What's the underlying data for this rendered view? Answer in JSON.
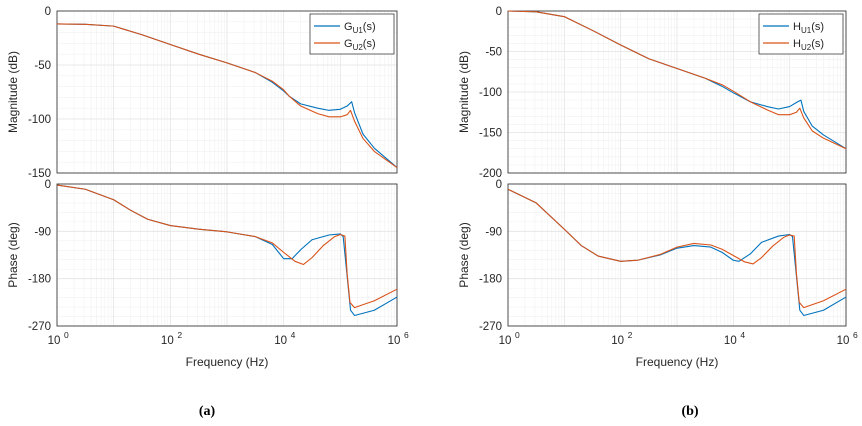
{
  "chart_data": [
    {
      "id": "a",
      "type": "line",
      "caption": "(a)",
      "xlabel": "Frequency (Hz)",
      "xscale": "log",
      "xlim": [
        1,
        1000000
      ],
      "xticks": [
        1,
        100,
        10000,
        1000000
      ],
      "xtick_labels": [
        {
          "base": "10",
          "exp": "0"
        },
        {
          "base": "10",
          "exp": "2"
        },
        {
          "base": "10",
          "exp": "4"
        },
        {
          "base": "10",
          "exp": "6"
        }
      ],
      "legend_location": "top-right",
      "colors": {
        "series1": "#0072BD",
        "series2": "#D95319"
      },
      "legend": [
        {
          "main": "G",
          "sub": "U1",
          "tail": "(s)"
        },
        {
          "main": "G",
          "sub": "U2",
          "tail": "(s)"
        }
      ],
      "magnitude": {
        "ylabel": "Magnitude (dB)",
        "ylim": [
          -150,
          0
        ],
        "yticks": [
          0,
          -50,
          -100,
          -150
        ],
        "ytick_labels": [
          "0",
          "-50",
          "-100",
          "-150"
        ],
        "series": [
          {
            "name": "G_U1(s)",
            "points": [
              [
                0,
                -12
              ],
              [
                0.5,
                -12.3
              ],
              [
                1,
                -14
              ],
              [
                1.5,
                -22
              ],
              [
                2,
                -31
              ],
              [
                2.5,
                -40
              ],
              [
                3,
                -48
              ],
              [
                3.5,
                -57
              ],
              [
                3.8,
                -66
              ],
              [
                4,
                -74
              ],
              [
                4.1,
                -79
              ],
              [
                4.3,
                -86
              ],
              [
                4.6,
                -90
              ],
              [
                4.8,
                -92
              ],
              [
                5,
                -91
              ],
              [
                5.12,
                -88
              ],
              [
                5.2,
                -84
              ],
              [
                5.25,
                -94
              ],
              [
                5.4,
                -114
              ],
              [
                5.6,
                -127
              ],
              [
                6,
                -145
              ]
            ]
          },
          {
            "name": "G_U2(s)",
            "points": [
              [
                0,
                -12
              ],
              [
                0.5,
                -12.3
              ],
              [
                1,
                -14
              ],
              [
                1.5,
                -22
              ],
              [
                2,
                -31
              ],
              [
                2.5,
                -40
              ],
              [
                3,
                -48
              ],
              [
                3.5,
                -57
              ],
              [
                3.8,
                -65
              ],
              [
                4,
                -73
              ],
              [
                4.1,
                -79
              ],
              [
                4.3,
                -88
              ],
              [
                4.6,
                -95
              ],
              [
                4.8,
                -98
              ],
              [
                5,
                -98
              ],
              [
                5.12,
                -96
              ],
              [
                5.18,
                -92
              ],
              [
                5.25,
                -102
              ],
              [
                5.4,
                -118
              ],
              [
                5.6,
                -130
              ],
              [
                6,
                -145
              ]
            ]
          }
        ]
      },
      "phase": {
        "ylabel": "Phase (deg)",
        "ylim": [
          -270,
          0
        ],
        "yticks": [
          0,
          -90,
          -180,
          -270
        ],
        "ytick_labels": [
          "0",
          "-90",
          "-180",
          "-270"
        ],
        "series": [
          {
            "name": "G_U1(s)",
            "points": [
              [
                0,
                -2
              ],
              [
                0.5,
                -10
              ],
              [
                1,
                -30
              ],
              [
                1.3,
                -50
              ],
              [
                1.6,
                -67
              ],
              [
                2,
                -79
              ],
              [
                2.5,
                -86
              ],
              [
                3,
                -91
              ],
              [
                3.5,
                -100
              ],
              [
                3.8,
                -115
              ],
              [
                4,
                -142
              ],
              [
                4.15,
                -142
              ],
              [
                4.3,
                -125
              ],
              [
                4.5,
                -106
              ],
              [
                4.8,
                -97
              ],
              [
                5,
                -95
              ],
              [
                5.05,
                -100
              ],
              [
                5.12,
                -175
              ],
              [
                5.18,
                -240
              ],
              [
                5.25,
                -250
              ],
              [
                5.6,
                -240
              ],
              [
                6,
                -215
              ]
            ]
          },
          {
            "name": "G_U2(s)",
            "points": [
              [
                0,
                -2
              ],
              [
                0.5,
                -10
              ],
              [
                1,
                -30
              ],
              [
                1.3,
                -50
              ],
              [
                1.6,
                -67
              ],
              [
                2,
                -79
              ],
              [
                2.5,
                -86
              ],
              [
                3,
                -91
              ],
              [
                3.5,
                -100
              ],
              [
                3.8,
                -112
              ],
              [
                4,
                -130
              ],
              [
                4.2,
                -147
              ],
              [
                4.35,
                -153
              ],
              [
                4.5,
                -140
              ],
              [
                4.7,
                -117
              ],
              [
                4.9,
                -100
              ],
              [
                5,
                -96
              ],
              [
                5.08,
                -99
              ],
              [
                5.12,
                -170
              ],
              [
                5.17,
                -225
              ],
              [
                5.25,
                -235
              ],
              [
                5.6,
                -222
              ],
              [
                6,
                -200
              ]
            ]
          }
        ]
      }
    },
    {
      "id": "b",
      "type": "line",
      "caption": "(b)",
      "xlabel": "Frequency (Hz)",
      "xscale": "log",
      "xlim": [
        1,
        1000000
      ],
      "xticks": [
        1,
        100,
        10000,
        1000000
      ],
      "xtick_labels": [
        {
          "base": "10",
          "exp": "0"
        },
        {
          "base": "10",
          "exp": "2"
        },
        {
          "base": "10",
          "exp": "4"
        },
        {
          "base": "10",
          "exp": "6"
        }
      ],
      "legend_location": "top-right",
      "colors": {
        "series1": "#0072BD",
        "series2": "#D95319"
      },
      "legend": [
        {
          "main": "H",
          "sub": "U1",
          "tail": "(s)"
        },
        {
          "main": "H",
          "sub": "U2",
          "tail": "(s)"
        }
      ],
      "magnitude": {
        "ylabel": "Magnitude (dB)",
        "ylim": [
          -200,
          0
        ],
        "yticks": [
          0,
          -50,
          -100,
          -150,
          -200
        ],
        "ytick_labels": [
          "0",
          "-50",
          "-100",
          "-150",
          "-200"
        ],
        "series": [
          {
            "name": "H_U1(s)",
            "points": [
              [
                0,
                0
              ],
              [
                0.5,
                -1
              ],
              [
                1,
                -7
              ],
              [
                1.5,
                -24
              ],
              [
                2,
                -42
              ],
              [
                2.5,
                -59
              ],
              [
                3,
                -71
              ],
              [
                3.5,
                -83
              ],
              [
                3.8,
                -93
              ],
              [
                4,
                -101
              ],
              [
                4.3,
                -112
              ],
              [
                4.6,
                -118
              ],
              [
                4.8,
                -121
              ],
              [
                5,
                -118
              ],
              [
                5.12,
                -113
              ],
              [
                5.2,
                -110
              ],
              [
                5.25,
                -124
              ],
              [
                5.4,
                -142
              ],
              [
                5.6,
                -153
              ],
              [
                6,
                -170
              ]
            ]
          },
          {
            "name": "H_U2(s)",
            "points": [
              [
                0,
                0
              ],
              [
                0.5,
                -1
              ],
              [
                1,
                -7
              ],
              [
                1.5,
                -24
              ],
              [
                2,
                -42
              ],
              [
                2.5,
                -59
              ],
              [
                3,
                -71
              ],
              [
                3.5,
                -83
              ],
              [
                3.8,
                -91
              ],
              [
                4,
                -99
              ],
              [
                4.3,
                -112
              ],
              [
                4.6,
                -122
              ],
              [
                4.8,
                -128
              ],
              [
                5,
                -128
              ],
              [
                5.12,
                -125
              ],
              [
                5.18,
                -120
              ],
              [
                5.25,
                -132
              ],
              [
                5.4,
                -148
              ],
              [
                5.6,
                -157
              ],
              [
                6,
                -170
              ]
            ]
          }
        ]
      },
      "phase": {
        "ylabel": "Phase (deg)",
        "ylim": [
          -270,
          0
        ],
        "yticks": [
          0,
          -90,
          -180,
          -270
        ],
        "ytick_labels": [
          "0",
          "-90",
          "-180",
          "-270"
        ],
        "series": [
          {
            "name": "H_U1(s)",
            "points": [
              [
                0,
                -10
              ],
              [
                0.5,
                -36
              ],
              [
                1,
                -86
              ],
              [
                1.3,
                -117
              ],
              [
                1.6,
                -137
              ],
              [
                2,
                -147
              ],
              [
                2.3,
                -145
              ],
              [
                2.7,
                -135
              ],
              [
                3,
                -122
              ],
              [
                3.3,
                -117
              ],
              [
                3.6,
                -120
              ],
              [
                3.8,
                -130
              ],
              [
                4,
                -145
              ],
              [
                4.1,
                -147
              ],
              [
                4.3,
                -133
              ],
              [
                4.5,
                -111
              ],
              [
                4.8,
                -99
              ],
              [
                5,
                -96
              ],
              [
                5.05,
                -100
              ],
              [
                5.12,
                -175
              ],
              [
                5.18,
                -240
              ],
              [
                5.25,
                -250
              ],
              [
                5.6,
                -240
              ],
              [
                6,
                -215
              ]
            ]
          },
          {
            "name": "H_U2(s)",
            "points": [
              [
                0,
                -10
              ],
              [
                0.5,
                -36
              ],
              [
                1,
                -86
              ],
              [
                1.3,
                -117
              ],
              [
                1.6,
                -137
              ],
              [
                2,
                -147
              ],
              [
                2.3,
                -145
              ],
              [
                2.7,
                -134
              ],
              [
                3,
                -120
              ],
              [
                3.3,
                -113
              ],
              [
                3.6,
                -116
              ],
              [
                3.8,
                -124
              ],
              [
                4,
                -136
              ],
              [
                4.2,
                -148
              ],
              [
                4.35,
                -152
              ],
              [
                4.5,
                -140
              ],
              [
                4.7,
                -118
              ],
              [
                4.9,
                -101
              ],
              [
                5,
                -97
              ],
              [
                5.08,
                -99
              ],
              [
                5.12,
                -170
              ],
              [
                5.17,
                -225
              ],
              [
                5.25,
                -235
              ],
              [
                5.6,
                -222
              ],
              [
                6,
                -200
              ]
            ]
          }
        ]
      }
    }
  ]
}
